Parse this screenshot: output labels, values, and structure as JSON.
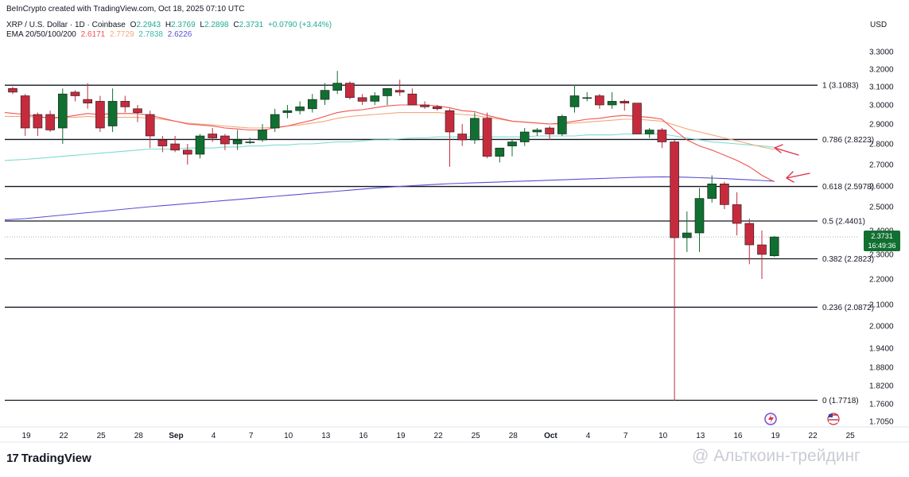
{
  "header": {
    "credit": "BeInCrypto created with TradingView.com, Oct 18, 2025 07:10 UTC",
    "symbol": "XRP / U.S. Dollar · 1D · Coinbase",
    "open_label": "O",
    "open": "2.2943",
    "high_label": "H",
    "high": "2.3769",
    "low_label": "L",
    "low": "2.2898",
    "close_label": "C",
    "close": "2.3731",
    "change": "+0.0790 (+3.44%)",
    "ema_label": "EMA 20/50/100/200",
    "ema_values": [
      "2.6171",
      "2.7729",
      "2.7838",
      "2.6226"
    ]
  },
  "currency": "USD",
  "price_badge": {
    "price": "2.3731",
    "countdown": "16:49:36"
  },
  "brand": {
    "logo_text": "TradingView",
    "watermark": "@ Альткоин-трейдинг"
  },
  "colors": {
    "up": "#106f31",
    "down": "#c62b3d",
    "ema20": "#ef5350",
    "ema50": "#f4a77a",
    "ema100": "#7fdccd",
    "ema200": "#5b4fd6",
    "fib": "#131722",
    "arrow": "#e0314a"
  },
  "chart_data": {
    "type": "candlestick",
    "y_ticks": [
      "3.3000",
      "3.2000",
      "3.1000",
      "3.0000",
      "2.9000",
      "2.8000",
      "2.7000",
      "2.6000",
      "2.5000",
      "2.4000",
      "2.3000",
      "2.2000",
      "2.1000",
      "2.0000",
      "1.9400",
      "1.8800",
      "1.8200",
      "1.7600",
      "1.7050"
    ],
    "x_ticks": [
      "19",
      "22",
      "25",
      "28",
      "Sep",
      "4",
      "7",
      "10",
      "13",
      "16",
      "19",
      "22",
      "25",
      "28",
      "Oct",
      "4",
      "7",
      "10",
      "13",
      "16",
      "19",
      "22",
      "25"
    ],
    "fib_levels": [
      {
        "label": "1 (3.1083)",
        "value": 3.1083
      },
      {
        "label": "0.786 (2.8223)",
        "value": 2.8223
      },
      {
        "label": "0.618 (2.5978)",
        "value": 2.5978
      },
      {
        "label": "0.5 (2.4401)",
        "value": 2.4401
      },
      {
        "label": "0.382 (2.2823)",
        "value": 2.2823
      },
      {
        "label": "0.236 (2.0872)",
        "value": 2.0872
      },
      {
        "label": "0 (1.7718)",
        "value": 1.7718
      }
    ],
    "current_price": 2.3731,
    "candles": [
      [
        3.09,
        3.1,
        3.06,
        3.07
      ],
      [
        3.05,
        3.06,
        2.84,
        2.88
      ],
      [
        2.95,
        2.96,
        2.84,
        2.88
      ],
      [
        2.95,
        2.97,
        2.86,
        2.87
      ],
      [
        2.88,
        3.09,
        2.8,
        3.06
      ],
      [
        3.07,
        3.08,
        3.02,
        3.05
      ],
      [
        3.03,
        3.12,
        2.98,
        3.01
      ],
      [
        3.02,
        3.05,
        2.86,
        2.88
      ],
      [
        2.89,
        3.09,
        2.86,
        3.02
      ],
      [
        3.02,
        3.05,
        2.96,
        2.99
      ],
      [
        2.98,
        3.0,
        2.91,
        2.96
      ],
      [
        2.95,
        2.97,
        2.78,
        2.84
      ],
      [
        2.82,
        2.84,
        2.76,
        2.79
      ],
      [
        2.8,
        2.84,
        2.76,
        2.77
      ],
      [
        2.77,
        2.8,
        2.7,
        2.75
      ],
      [
        2.75,
        2.85,
        2.73,
        2.84
      ],
      [
        2.85,
        2.88,
        2.81,
        2.83
      ],
      [
        2.84,
        2.85,
        2.77,
        2.8
      ],
      [
        2.8,
        2.87,
        2.77,
        2.82
      ],
      [
        2.81,
        2.83,
        2.8,
        2.81
      ],
      [
        2.82,
        2.9,
        2.81,
        2.87
      ],
      [
        2.88,
        2.98,
        2.86,
        2.95
      ],
      [
        2.96,
        3.0,
        2.93,
        2.97
      ],
      [
        2.97,
        3.02,
        2.95,
        2.99
      ],
      [
        2.98,
        3.06,
        2.96,
        3.03
      ],
      [
        3.03,
        3.12,
        3.0,
        3.08
      ],
      [
        3.08,
        3.19,
        3.06,
        3.12
      ],
      [
        3.12,
        3.13,
        3.03,
        3.04
      ],
      [
        3.04,
        3.06,
        3.0,
        3.02
      ],
      [
        3.02,
        3.07,
        3.0,
        3.05
      ],
      [
        3.05,
        3.09,
        3.0,
        3.09
      ],
      [
        3.08,
        3.14,
        3.05,
        3.07
      ],
      [
        3.06,
        3.09,
        3.0,
        3.0
      ],
      [
        3.0,
        3.02,
        2.98,
        2.99
      ],
      [
        2.99,
        3.0,
        2.97,
        2.98
      ],
      [
        2.97,
        2.98,
        2.69,
        2.86
      ],
      [
        2.85,
        2.9,
        2.79,
        2.82
      ],
      [
        2.82,
        2.96,
        2.8,
        2.93
      ],
      [
        2.93,
        2.96,
        2.73,
        2.74
      ],
      [
        2.74,
        2.78,
        2.71,
        2.78
      ],
      [
        2.79,
        2.82,
        2.74,
        2.81
      ],
      [
        2.81,
        2.88,
        2.79,
        2.86
      ],
      [
        2.86,
        2.88,
        2.84,
        2.87
      ],
      [
        2.88,
        2.89,
        2.82,
        2.85
      ],
      [
        2.85,
        2.95,
        2.84,
        2.94
      ],
      [
        2.99,
        3.11,
        2.96,
        3.05
      ],
      [
        3.04,
        3.07,
        3.02,
        3.04
      ],
      [
        3.05,
        3.06,
        2.98,
        3.0
      ],
      [
        3.0,
        3.07,
        2.98,
        3.02
      ],
      [
        3.02,
        3.03,
        2.97,
        3.01
      ],
      [
        3.01,
        3.01,
        2.85,
        2.85
      ],
      [
        2.85,
        2.88,
        2.83,
        2.87
      ],
      [
        2.87,
        2.88,
        2.78,
        2.81
      ],
      [
        2.81,
        2.82,
        1.77,
        2.37
      ],
      [
        2.37,
        2.48,
        2.31,
        2.39
      ],
      [
        2.39,
        2.59,
        2.31,
        2.54
      ],
      [
        2.54,
        2.65,
        2.52,
        2.61
      ],
      [
        2.61,
        2.62,
        2.49,
        2.51
      ],
      [
        2.51,
        2.57,
        2.38,
        2.43
      ],
      [
        2.43,
        2.45,
        2.26,
        2.34
      ],
      [
        2.34,
        2.4,
        2.2,
        2.3
      ],
      [
        2.2943,
        2.3769,
        2.2898,
        2.3731
      ]
    ],
    "ema20": [
      2.96,
      2.95,
      2.94,
      2.93,
      2.935,
      2.945,
      2.955,
      2.95,
      2.955,
      2.955,
      2.955,
      2.945,
      2.93,
      2.915,
      2.9,
      2.895,
      2.89,
      2.88,
      2.875,
      2.87,
      2.87,
      2.88,
      2.89,
      2.905,
      2.92,
      2.94,
      2.96,
      2.97,
      2.975,
      2.985,
      2.995,
      3.0,
      3.0,
      3.0,
      2.995,
      2.985,
      2.97,
      2.965,
      2.945,
      2.93,
      2.915,
      2.91,
      2.905,
      2.9,
      2.905,
      2.915,
      2.925,
      2.93,
      2.94,
      2.945,
      2.94,
      2.935,
      2.925,
      2.87,
      2.82,
      2.79,
      2.77,
      2.745,
      2.72,
      2.69,
      2.65,
      2.62
    ],
    "ema50": [
      2.94,
      2.94,
      2.935,
      2.935,
      2.935,
      2.935,
      2.94,
      2.935,
      2.935,
      2.935,
      2.935,
      2.93,
      2.925,
      2.915,
      2.905,
      2.9,
      2.895,
      2.89,
      2.885,
      2.88,
      2.88,
      2.885,
      2.89,
      2.895,
      2.905,
      2.915,
      2.93,
      2.94,
      2.945,
      2.95,
      2.955,
      2.96,
      2.96,
      2.96,
      2.96,
      2.955,
      2.95,
      2.945,
      2.935,
      2.925,
      2.915,
      2.91,
      2.905,
      2.9,
      2.9,
      2.905,
      2.91,
      2.915,
      2.92,
      2.925,
      2.925,
      2.92,
      2.915,
      2.895,
      2.875,
      2.86,
      2.845,
      2.83,
      2.815,
      2.8,
      2.785,
      2.773
    ],
    "ema100": [
      2.72,
      2.725,
      2.73,
      2.735,
      2.74,
      2.745,
      2.75,
      2.755,
      2.76,
      2.765,
      2.77,
      2.775,
      2.775,
      2.775,
      2.78,
      2.78,
      2.78,
      2.785,
      2.785,
      2.79,
      2.79,
      2.795,
      2.795,
      2.8,
      2.8,
      2.805,
      2.81,
      2.81,
      2.815,
      2.82,
      2.82,
      2.825,
      2.83,
      2.83,
      2.835,
      2.835,
      2.835,
      2.835,
      2.835,
      2.835,
      2.835,
      2.835,
      2.84,
      2.84,
      2.84,
      2.84,
      2.845,
      2.845,
      2.845,
      2.85,
      2.85,
      2.85,
      2.85,
      2.84,
      2.83,
      2.82,
      2.81,
      2.805,
      2.8,
      2.795,
      2.79,
      2.784
    ],
    "ema200": [
      2.445,
      2.45,
      2.455,
      2.46,
      2.465,
      2.47,
      2.475,
      2.48,
      2.485,
      2.49,
      2.495,
      2.5,
      2.505,
      2.51,
      2.515,
      2.52,
      2.525,
      2.53,
      2.535,
      2.54,
      2.545,
      2.55,
      2.555,
      2.56,
      2.565,
      2.57,
      2.575,
      2.58,
      2.585,
      2.59,
      2.594,
      2.598,
      2.602,
      2.605,
      2.608,
      2.611,
      2.613,
      2.615,
      2.617,
      2.619,
      2.621,
      2.623,
      2.625,
      2.627,
      2.629,
      2.631,
      2.633,
      2.635,
      2.637,
      2.639,
      2.641,
      2.642,
      2.643,
      2.642,
      2.641,
      2.639,
      2.637,
      2.635,
      2.632,
      2.629,
      2.626,
      2.6226
    ]
  }
}
